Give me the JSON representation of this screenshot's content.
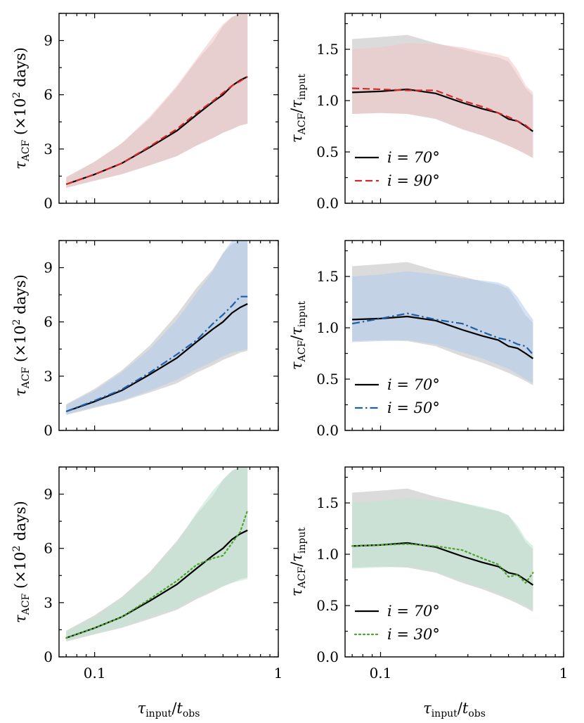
{
  "colors": {
    "gray_band": "#bdbdbd",
    "red": "#d62728",
    "red_band": "#f2c4c4",
    "blue": "#1f5fa8",
    "blue_band": "#aecbeb",
    "green": "#4aa52a",
    "green_band": "#bde6cf",
    "black": "#000000"
  },
  "axes_text": {
    "xlabel": "τ_input/t_obs",
    "ylabel_left": "τ_ACF (×10² days)",
    "ylabel_right": "τ_ACF/τ_input",
    "x_tick_labels": [
      "0.1",
      "1"
    ],
    "y_tick_labels_left": [
      "0",
      "3",
      "6",
      "9"
    ],
    "y_tick_labels_right": [
      "0.0",
      "0.5",
      "1.0",
      "1.5"
    ]
  },
  "chart_data": [
    {
      "type": "line",
      "panel": "row1-left",
      "xscale": "log",
      "xlim": [
        0.064,
        1.0
      ],
      "ylim": [
        0,
        10.5
      ],
      "yticks": [
        0,
        3,
        6,
        9
      ],
      "series": [
        {
          "name": "i = 70°",
          "style": "solid",
          "color": "black",
          "x": [
            0.07,
            0.1,
            0.14,
            0.2,
            0.28,
            0.36,
            0.44,
            0.5,
            0.56,
            0.62,
            0.68
          ],
          "y": [
            1.05,
            1.6,
            2.2,
            3.1,
            4.0,
            4.9,
            5.6,
            6.0,
            6.5,
            6.8,
            7.0
          ],
          "band_low": [
            0.85,
            1.25,
            1.6,
            2.1,
            2.6,
            3.2,
            3.6,
            3.9,
            4.1,
            4.3,
            4.4
          ],
          "band_high": [
            1.45,
            2.3,
            3.3,
            4.7,
            6.4,
            7.9,
            8.9,
            9.8,
            10.3,
            10.5,
            10.5
          ]
        },
        {
          "name": "i = 90°",
          "style": "dashed",
          "color": "red",
          "x": [
            0.07,
            0.1,
            0.14,
            0.2,
            0.28,
            0.36,
            0.44,
            0.5,
            0.56,
            0.62,
            0.68
          ],
          "y": [
            1.05,
            1.6,
            2.2,
            3.15,
            4.1,
            5.0,
            5.65,
            6.1,
            6.5,
            6.75,
            7.0
          ],
          "band_low": [
            0.85,
            1.25,
            1.6,
            2.1,
            2.6,
            3.2,
            3.6,
            3.9,
            4.1,
            4.3,
            4.4
          ],
          "band_high": [
            1.4,
            2.3,
            3.3,
            4.8,
            6.5,
            8.0,
            9.2,
            9.9,
            10.3,
            10.5,
            10.5
          ]
        }
      ]
    },
    {
      "type": "line",
      "panel": "row1-right",
      "xscale": "log",
      "xlim": [
        0.064,
        1.0
      ],
      "ylim": [
        0.0,
        1.85
      ],
      "yticks": [
        0.0,
        0.5,
        1.0,
        1.5
      ],
      "legend": "lower-left",
      "series": [
        {
          "name": "i = 70°",
          "style": "solid",
          "color": "black",
          "x": [
            0.07,
            0.1,
            0.14,
            0.2,
            0.28,
            0.36,
            0.44,
            0.5,
            0.56,
            0.62,
            0.68
          ],
          "y": [
            1.08,
            1.09,
            1.11,
            1.07,
            0.98,
            0.92,
            0.88,
            0.82,
            0.8,
            0.75,
            0.7
          ],
          "band_low": [
            0.87,
            0.88,
            0.87,
            0.82,
            0.72,
            0.66,
            0.6,
            0.56,
            0.52,
            0.48,
            0.44
          ],
          "band_high": [
            1.6,
            1.62,
            1.64,
            1.56,
            1.5,
            1.45,
            1.42,
            1.38,
            1.25,
            1.12,
            1.05
          ]
        },
        {
          "name": "i = 90°",
          "style": "dashed",
          "color": "red",
          "x": [
            0.07,
            0.1,
            0.14,
            0.2,
            0.28,
            0.36,
            0.44,
            0.5,
            0.56,
            0.62,
            0.68
          ],
          "y": [
            1.12,
            1.11,
            1.1,
            1.1,
            1.0,
            0.94,
            0.88,
            0.84,
            0.8,
            0.76,
            0.7
          ],
          "band_low": [
            0.87,
            0.88,
            0.87,
            0.83,
            0.72,
            0.66,
            0.6,
            0.56,
            0.52,
            0.48,
            0.44
          ],
          "band_high": [
            1.5,
            1.52,
            1.56,
            1.55,
            1.52,
            1.48,
            1.45,
            1.42,
            1.3,
            1.15,
            1.08
          ]
        }
      ]
    },
    {
      "type": "line",
      "panel": "row2-left",
      "xscale": "log",
      "xlim": [
        0.064,
        1.0
      ],
      "ylim": [
        0,
        10.5
      ],
      "yticks": [
        0,
        3,
        6,
        9
      ],
      "series": [
        {
          "name": "i = 70°",
          "style": "solid",
          "color": "black",
          "x": [
            0.07,
            0.1,
            0.14,
            0.2,
            0.28,
            0.36,
            0.44,
            0.5,
            0.56,
            0.62,
            0.68
          ],
          "y": [
            1.05,
            1.6,
            2.2,
            3.1,
            4.0,
            4.9,
            5.6,
            6.0,
            6.5,
            6.8,
            7.0
          ],
          "band_low": [
            0.85,
            1.25,
            1.6,
            2.1,
            2.6,
            3.2,
            3.6,
            3.9,
            4.1,
            4.3,
            4.4
          ],
          "band_high": [
            1.45,
            2.3,
            3.3,
            4.7,
            6.4,
            7.9,
            8.9,
            9.8,
            10.3,
            10.5,
            10.5
          ]
        },
        {
          "name": "i = 50°",
          "style": "dashdot",
          "color": "blue",
          "x": [
            0.07,
            0.1,
            0.14,
            0.2,
            0.28,
            0.36,
            0.44,
            0.5,
            0.56,
            0.62,
            0.68
          ],
          "y": [
            1.05,
            1.65,
            2.25,
            3.2,
            4.2,
            5.0,
            5.9,
            6.4,
            6.9,
            7.4,
            7.4
          ],
          "band_low": [
            0.9,
            1.3,
            1.65,
            2.2,
            2.8,
            3.4,
            3.8,
            4.1,
            4.3,
            4.4,
            4.5
          ],
          "band_high": [
            1.4,
            2.2,
            3.2,
            4.5,
            6.1,
            7.6,
            8.8,
            9.8,
            10.5,
            10.5,
            10.5
          ]
        }
      ]
    },
    {
      "type": "line",
      "panel": "row2-right",
      "xscale": "log",
      "xlim": [
        0.064,
        1.0
      ],
      "ylim": [
        0.0,
        1.85
      ],
      "yticks": [
        0.0,
        0.5,
        1.0,
        1.5
      ],
      "legend": "lower-left",
      "series": [
        {
          "name": "i = 70°",
          "style": "solid",
          "color": "black",
          "x": [
            0.07,
            0.1,
            0.14,
            0.2,
            0.28,
            0.36,
            0.44,
            0.5,
            0.56,
            0.62,
            0.68
          ],
          "y": [
            1.08,
            1.09,
            1.11,
            1.07,
            0.98,
            0.92,
            0.88,
            0.82,
            0.8,
            0.75,
            0.7
          ],
          "band_low": [
            0.87,
            0.88,
            0.87,
            0.82,
            0.72,
            0.66,
            0.6,
            0.56,
            0.52,
            0.48,
            0.44
          ],
          "band_high": [
            1.6,
            1.62,
            1.64,
            1.56,
            1.5,
            1.45,
            1.42,
            1.38,
            1.25,
            1.12,
            1.05
          ]
        },
        {
          "name": "i = 50°",
          "style": "dashdot",
          "color": "blue",
          "x": [
            0.07,
            0.1,
            0.14,
            0.2,
            0.28,
            0.36,
            0.44,
            0.5,
            0.56,
            0.62,
            0.68
          ],
          "y": [
            1.04,
            1.09,
            1.14,
            1.08,
            1.04,
            0.96,
            0.9,
            0.88,
            0.84,
            0.82,
            0.74
          ],
          "band_low": [
            0.86,
            0.87,
            0.88,
            0.84,
            0.76,
            0.7,
            0.64,
            0.6,
            0.55,
            0.5,
            0.46
          ],
          "band_high": [
            1.5,
            1.52,
            1.55,
            1.52,
            1.48,
            1.46,
            1.44,
            1.4,
            1.3,
            1.18,
            1.08
          ]
        }
      ]
    },
    {
      "type": "line",
      "panel": "row3-left",
      "xscale": "log",
      "xlim": [
        0.064,
        1.0
      ],
      "ylim": [
        0,
        10.5
      ],
      "yticks": [
        0,
        3,
        6,
        9
      ],
      "series": [
        {
          "name": "i = 70°",
          "style": "solid",
          "color": "black",
          "x": [
            0.07,
            0.1,
            0.14,
            0.2,
            0.28,
            0.36,
            0.44,
            0.5,
            0.56,
            0.62,
            0.68
          ],
          "y": [
            1.05,
            1.6,
            2.2,
            3.1,
            4.0,
            4.9,
            5.6,
            6.0,
            6.5,
            6.8,
            7.0
          ],
          "band_low": [
            0.85,
            1.25,
            1.6,
            2.1,
            2.6,
            3.2,
            3.6,
            3.9,
            4.1,
            4.3,
            4.4
          ],
          "band_high": [
            1.45,
            2.3,
            3.3,
            4.7,
            6.4,
            7.9,
            8.9,
            9.8,
            10.3,
            10.5,
            10.5
          ]
        },
        {
          "name": "i = 30°",
          "style": "dotted",
          "color": "green",
          "x": [
            0.07,
            0.1,
            0.14,
            0.2,
            0.28,
            0.36,
            0.44,
            0.5,
            0.56,
            0.62,
            0.68
          ],
          "y": [
            1.05,
            1.6,
            2.2,
            3.2,
            4.2,
            5.1,
            5.45,
            5.6,
            6.3,
            6.9,
            8.1
          ],
          "band_low": [
            0.9,
            1.3,
            1.65,
            2.2,
            2.7,
            3.3,
            3.7,
            3.9,
            4.1,
            4.2,
            4.3
          ],
          "band_high": [
            1.4,
            2.2,
            3.2,
            4.6,
            6.3,
            8.0,
            9.2,
            9.8,
            10.3,
            10.5,
            10.5
          ]
        }
      ]
    },
    {
      "type": "line",
      "panel": "row3-right",
      "xscale": "log",
      "xlim": [
        0.064,
        1.0
      ],
      "ylim": [
        0.0,
        1.85
      ],
      "yticks": [
        0.0,
        0.5,
        1.0,
        1.5
      ],
      "legend": "lower-left",
      "series": [
        {
          "name": "i = 70°",
          "style": "solid",
          "color": "black",
          "x": [
            0.07,
            0.1,
            0.14,
            0.2,
            0.28,
            0.36,
            0.44,
            0.5,
            0.56,
            0.62,
            0.68
          ],
          "y": [
            1.08,
            1.09,
            1.11,
            1.07,
            0.98,
            0.92,
            0.88,
            0.82,
            0.8,
            0.75,
            0.7
          ],
          "band_low": [
            0.87,
            0.88,
            0.87,
            0.82,
            0.72,
            0.66,
            0.6,
            0.56,
            0.52,
            0.48,
            0.44
          ],
          "band_high": [
            1.6,
            1.62,
            1.64,
            1.56,
            1.5,
            1.45,
            1.42,
            1.38,
            1.25,
            1.12,
            1.05
          ]
        },
        {
          "name": "i = 30°",
          "style": "dotted",
          "color": "green",
          "x": [
            0.07,
            0.1,
            0.14,
            0.2,
            0.28,
            0.36,
            0.44,
            0.5,
            0.56,
            0.62,
            0.68
          ],
          "y": [
            1.08,
            1.09,
            1.1,
            1.08,
            1.04,
            0.96,
            0.9,
            0.78,
            0.8,
            0.72,
            0.82
          ],
          "band_low": [
            0.86,
            0.87,
            0.88,
            0.83,
            0.74,
            0.68,
            0.62,
            0.58,
            0.54,
            0.5,
            0.46
          ],
          "band_high": [
            1.5,
            1.52,
            1.55,
            1.52,
            1.5,
            1.46,
            1.42,
            1.38,
            1.28,
            1.15,
            1.08
          ]
        }
      ]
    }
  ]
}
